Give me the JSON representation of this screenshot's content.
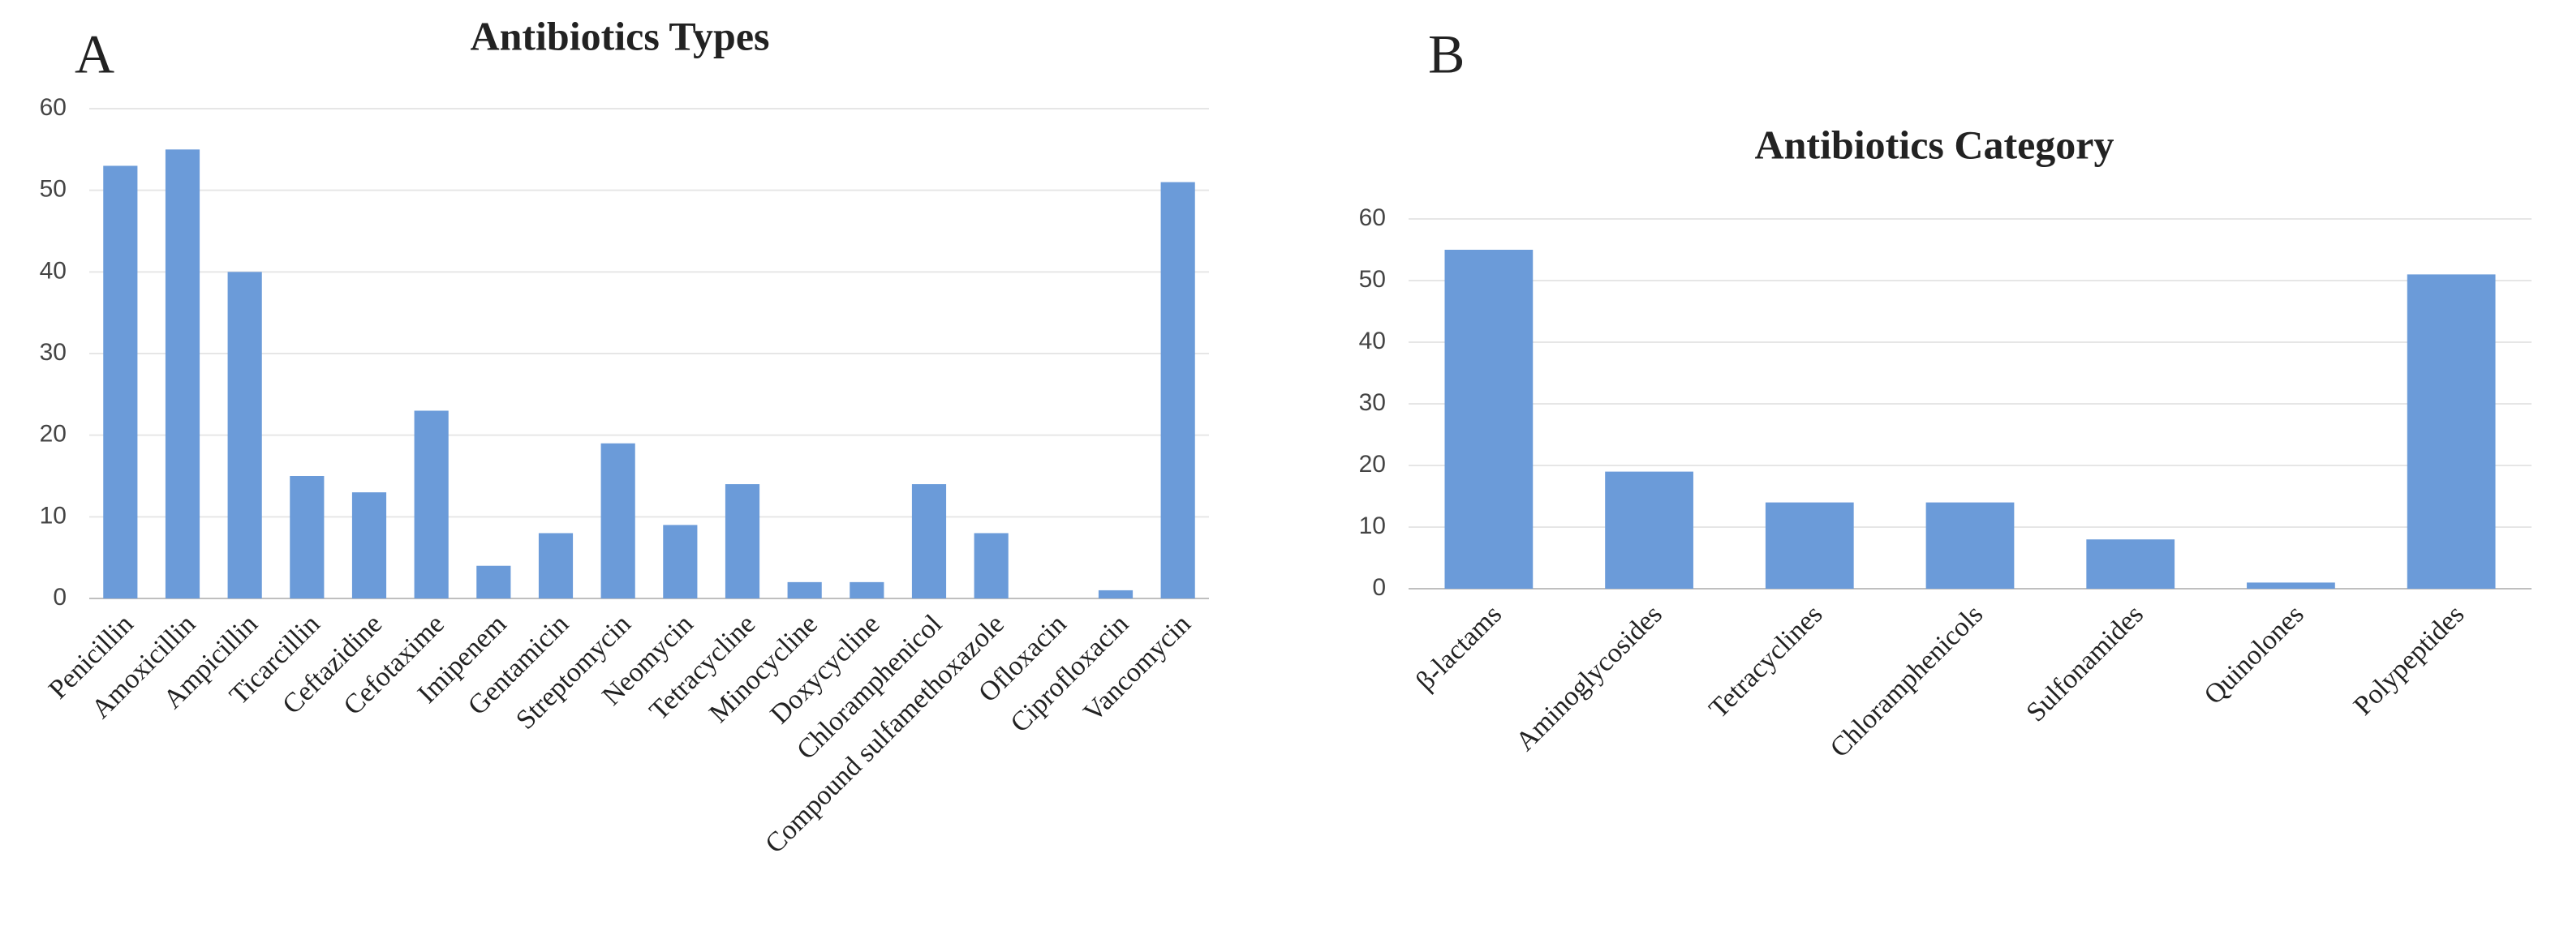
{
  "chart_data": [
    {
      "type": "bar",
      "panel_label": "A",
      "title": "Antibiotics Types",
      "categories": [
        "Penicillin",
        "Amoxicillin",
        "Ampicillin",
        "Ticarcillin",
        "Ceftazidine",
        "Cefotaxime",
        "Imipenem",
        "Gentamicin",
        "Streptomycin",
        "Neomycin",
        "Tetracycline",
        "Minocycline",
        "Doxycycline",
        "Chloramphenicol",
        "Compound sulfamethoxazole",
        "Ofloxacin",
        "Ciprofloxacin",
        "Vancomycin"
      ],
      "values": [
        53,
        55,
        40,
        15,
        13,
        23,
        4,
        8,
        19,
        9,
        14,
        2,
        2,
        14,
        8,
        0,
        1,
        51
      ],
      "color": "#6b9bd9",
      "ylim": [
        0,
        60
      ],
      "yticks": [
        0,
        10,
        20,
        30,
        40,
        50,
        60
      ],
      "grid": true
    },
    {
      "type": "bar",
      "panel_label": "B",
      "title": "Antibiotics Category",
      "categories": [
        "β-lactams",
        "Aminoglycosides",
        "Tetracyclines",
        "Chloramphenicols",
        "Sulfonamides",
        "Quinolones",
        "Polypeptides"
      ],
      "values": [
        55,
        19,
        14,
        14,
        8,
        1,
        51
      ],
      "color": "#6b9bd9",
      "ylim": [
        0,
        60
      ],
      "yticks": [
        0,
        10,
        20,
        30,
        40,
        50,
        60
      ],
      "grid": true
    }
  ]
}
